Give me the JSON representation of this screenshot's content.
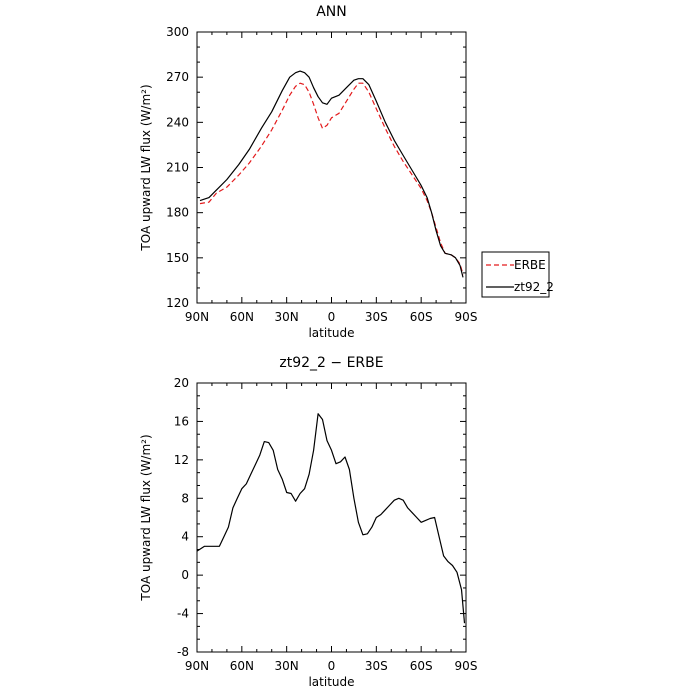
{
  "figure": {
    "background": "#ffffff",
    "x_tick_labels": [
      "90N",
      "60N",
      "30N",
      "0",
      "30S",
      "60S",
      "90S"
    ],
    "x_ticks": [
      90,
      60,
      30,
      0,
      -30,
      -60,
      -90
    ]
  },
  "chart_data": [
    {
      "type": "line",
      "title": "ANN",
      "xlabel": "latitude",
      "ylabel": "TOA upward LW flux (W/m²)",
      "xlim": [
        90,
        -90
      ],
      "ylim": [
        120,
        300
      ],
      "yticks": [
        120,
        150,
        180,
        210,
        240,
        270,
        300
      ],
      "legend": {
        "placement": "outside-right",
        "entries": [
          "ERBE",
          "zt92_2"
        ]
      },
      "series": [
        {
          "name": "ERBE",
          "color": "#e31a1c",
          "style": "dashed",
          "x": [
            88,
            82,
            77,
            70,
            62,
            55,
            47,
            40,
            33,
            28,
            24,
            21,
            18,
            15,
            12,
            9,
            6,
            3,
            0,
            -5,
            -10,
            -15,
            -18,
            -21,
            -25,
            -30,
            -36,
            -42,
            -48,
            -54,
            -60,
            -64,
            -67,
            -70,
            -73,
            -76,
            -80,
            -83,
            -86,
            -88
          ],
          "y": [
            186,
            187,
            193,
            197,
            205,
            213,
            224,
            235,
            248,
            258,
            264,
            266,
            265,
            260,
            252,
            243,
            236,
            238,
            243,
            246,
            254,
            262,
            266,
            266,
            260,
            249,
            236,
            224,
            214,
            205,
            196,
            188,
            180,
            170,
            160,
            153,
            152,
            150,
            146,
            139
          ]
        },
        {
          "name": "zt92_2",
          "color": "#000000",
          "style": "solid",
          "x": [
            88,
            82,
            77,
            70,
            62,
            55,
            47,
            40,
            33,
            28,
            24,
            21,
            18,
            15,
            12,
            9,
            6,
            3,
            0,
            -5,
            -10,
            -15,
            -18,
            -21,
            -25,
            -30,
            -36,
            -42,
            -48,
            -54,
            -60,
            -64,
            -67,
            -70,
            -73,
            -76,
            -80,
            -83,
            -86,
            -88
          ],
          "y": [
            188,
            190,
            195,
            202,
            212,
            222,
            236,
            247,
            261,
            270,
            273,
            274,
            273,
            270,
            263,
            257,
            253,
            252,
            256,
            258,
            263,
            268,
            269,
            269,
            265,
            254,
            240,
            228,
            218,
            208,
            198,
            190,
            180,
            168,
            158,
            153,
            152,
            150,
            145,
            137
          ]
        }
      ]
    },
    {
      "type": "line",
      "title": "zt92_2 − ERBE",
      "xlabel": "latitude",
      "ylabel": "TOA upward LW flux (W/m²)",
      "xlim": [
        90,
        -90
      ],
      "ylim": [
        -8,
        20
      ],
      "yticks": [
        -8,
        -4,
        0,
        4,
        8,
        12,
        16,
        20
      ],
      "series": [
        {
          "name": "",
          "color": "#000000",
          "style": "solid",
          "x": [
            90,
            85,
            80,
            75,
            72,
            69,
            66,
            63,
            60,
            57,
            54,
            51,
            48,
            45,
            42,
            39,
            36,
            33,
            30,
            27,
            24,
            21,
            18,
            15,
            12,
            9,
            6,
            3,
            0,
            -3,
            -6,
            -9,
            -12,
            -15,
            -18,
            -21,
            -24,
            -27,
            -30,
            -33,
            -36,
            -39,
            -42,
            -45,
            -48,
            -51,
            -54,
            -57,
            -60,
            -63,
            -66,
            -69,
            -72,
            -75,
            -78,
            -81,
            -84,
            -87,
            -89
          ],
          "y": [
            2.5,
            3.0,
            3.0,
            3.0,
            4.0,
            5.0,
            7.0,
            8.0,
            9.0,
            9.5,
            10.5,
            11.5,
            12.5,
            13.9,
            13.8,
            13.0,
            11.0,
            10.0,
            8.6,
            8.5,
            7.7,
            8.5,
            9.0,
            10.5,
            13.0,
            16.8,
            16.2,
            14.0,
            13.0,
            11.6,
            11.8,
            12.3,
            11.0,
            8.0,
            5.5,
            4.2,
            4.3,
            5.0,
            6.0,
            6.3,
            6.8,
            7.3,
            7.8,
            8.0,
            7.8,
            7.0,
            6.5,
            6.0,
            5.5,
            5.7,
            5.9,
            6.0,
            4.0,
            2.0,
            1.4,
            1.0,
            0.3,
            -1.5,
            -5.0
          ]
        }
      ]
    }
  ]
}
